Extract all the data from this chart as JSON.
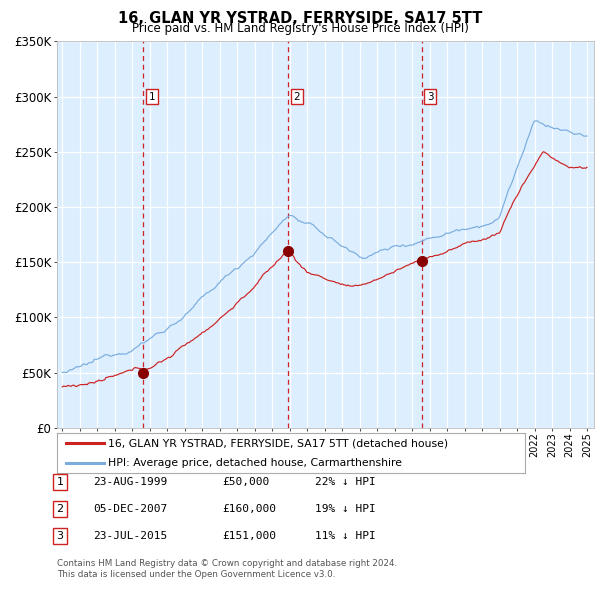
{
  "title": "16, GLAN YR YSTRAD, FERRYSIDE, SA17 5TT",
  "subtitle": "Price paid vs. HM Land Registry's House Price Index (HPI)",
  "legend_line1": "16, GLAN YR YSTRAD, FERRYSIDE, SA17 5TT (detached house)",
  "legend_line2": "HPI: Average price, detached house, Carmarthenshire",
  "footer1": "Contains HM Land Registry data © Crown copyright and database right 2024.",
  "footer2": "This data is licensed under the Open Government Licence v3.0.",
  "sale_dates_num": [
    1999.644,
    2007.921,
    2015.556
  ],
  "sale_prices": [
    50000,
    160000,
    151000
  ],
  "sale_labels": [
    "1",
    "2",
    "3"
  ],
  "table_rows": [
    [
      "1",
      "23-AUG-1999",
      "£50,000",
      "22% ↓ HPI"
    ],
    [
      "2",
      "05-DEC-2007",
      "£160,000",
      "19% ↓ HPI"
    ],
    [
      "3",
      "23-JUL-2015",
      "£151,000",
      "11% ↓ HPI"
    ]
  ],
  "hpi_color": "#7aadde",
  "price_color": "#cc2222",
  "sale_marker_color": "#880000",
  "vline_color": "#cc2222",
  "bg_color": "#ddeeff",
  "grid_color": "#ffffff",
  "ylim": [
    0,
    350000
  ],
  "yticks": [
    0,
    50000,
    100000,
    150000,
    200000,
    250000,
    300000,
    350000
  ],
  "xlim_start": 1994.7,
  "xlim_end": 2025.4
}
